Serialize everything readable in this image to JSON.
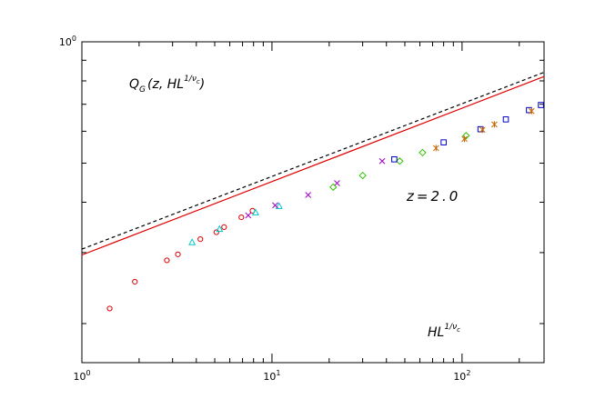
{
  "chart_data": {
    "type": "scatter",
    "x_scale": "log",
    "y_scale": "log",
    "xlim": [
      1,
      270
    ],
    "ylim": [
      0.16,
      1.0
    ],
    "grid": false,
    "x_ticks": [
      {
        "value": 1,
        "base": "10",
        "exp": "0"
      },
      {
        "value": 10,
        "base": "10",
        "exp": "1"
      },
      {
        "value": 100,
        "base": "10",
        "exp": "2"
      }
    ],
    "y_ticks": [
      {
        "value": 1,
        "base": "10",
        "exp": "0"
      }
    ],
    "y_minor_ticks": [
      0.2,
      0.3,
      0.4,
      0.5,
      0.6,
      0.7,
      0.8,
      0.9
    ],
    "annotations": {
      "ylabel": {
        "main": "Q",
        "sub": "G",
        "args": "(z, HL",
        "sup": "1/ν",
        "supsub": "c",
        "close": ")"
      },
      "param": "z=2.0",
      "xlabel": {
        "main": "HL",
        "sup": "1/ν",
        "supsub": "c"
      }
    },
    "lines": [
      {
        "name": "",
        "style": "solid",
        "color": "#e00000",
        "points": [
          [
            1,
            0.296
          ],
          [
            270,
            0.82
          ]
        ]
      },
      {
        "name": "",
        "style": "dashed",
        "color": "#000000",
        "points": [
          [
            1,
            0.306
          ],
          [
            270,
            0.84
          ]
        ]
      }
    ],
    "series": [
      {
        "marker": "circle",
        "color": "#e00000",
        "points": [
          [
            1.4,
            0.218
          ],
          [
            1.9,
            0.254
          ],
          [
            2.8,
            0.287
          ],
          [
            3.2,
            0.297
          ],
          [
            4.2,
            0.324
          ],
          [
            5.1,
            0.337
          ],
          [
            5.6,
            0.347
          ],
          [
            6.9,
            0.367
          ],
          [
            7.9,
            0.381
          ]
        ]
      },
      {
        "marker": "triangle",
        "color": "#00c8c8",
        "points": [
          [
            3.8,
            0.318
          ],
          [
            5.3,
            0.343
          ],
          [
            8.2,
            0.377
          ],
          [
            10.9,
            0.391
          ]
        ]
      },
      {
        "marker": "x",
        "color": "#a000c8",
        "points": [
          [
            7.5,
            0.371
          ],
          [
            10.4,
            0.393
          ],
          [
            15.5,
            0.417
          ],
          [
            22,
            0.446
          ],
          [
            38,
            0.506
          ]
        ]
      },
      {
        "marker": "diamond",
        "color": "#30c000",
        "points": [
          [
            21,
            0.436
          ],
          [
            30,
            0.466
          ],
          [
            47,
            0.506
          ],
          [
            62,
            0.531
          ],
          [
            105,
            0.585
          ]
        ]
      },
      {
        "marker": "square",
        "color": "#0000c8",
        "points": [
          [
            44,
            0.511
          ],
          [
            80,
            0.563
          ],
          [
            125,
            0.607
          ],
          [
            170,
            0.642
          ],
          [
            225,
            0.677
          ],
          [
            260,
            0.697
          ]
        ]
      },
      {
        "marker": "star",
        "color": "#c86400",
        "points": [
          [
            73,
            0.545
          ],
          [
            103,
            0.574
          ],
          [
            128,
            0.605
          ],
          [
            148,
            0.624
          ],
          [
            232,
            0.673
          ]
        ]
      }
    ]
  }
}
